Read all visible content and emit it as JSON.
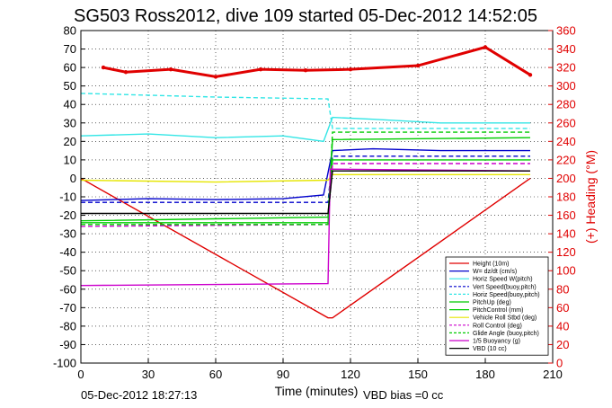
{
  "chart_data": {
    "type": "line",
    "title": "SG503 Ross2012, dive 109 started 05-Dec-2012 14:52:05",
    "xlabel": "Time (minutes)",
    "ylabel_right": "(+) Heading (°M)",
    "xlim": [
      0,
      210
    ],
    "ylim_left": [
      -100,
      80
    ],
    "ylim_right": [
      0,
      360
    ],
    "x_ticks": [
      "0",
      "30",
      "60",
      "90",
      "120",
      "150",
      "180",
      "210"
    ],
    "y_ticks_left": [
      "80",
      "70",
      "60",
      "50",
      "40",
      "30",
      "20",
      "10",
      "0",
      "-10",
      "-20",
      "-30",
      "-40",
      "-50",
      "-60",
      "-70",
      "-80",
      "-90",
      "-100"
    ],
    "y_ticks_right": [
      "360",
      "340",
      "320",
      "300",
      "280",
      "260",
      "240",
      "220",
      "200",
      "180",
      "160",
      "140",
      "120",
      "100",
      "80",
      "60",
      "40",
      "20",
      "0"
    ],
    "footer_left": "05-Dec-2012 18:27:13",
    "footer_right": "VBD bias =0 cc",
    "grid": true,
    "legend_position": "bottom-right",
    "series": [
      {
        "name": "Height (10m)",
        "color": "#e00000",
        "style": "solid",
        "x": [
          0,
          110,
          112,
          200
        ],
        "y": [
          0,
          -75.5,
          -75.5,
          0
        ]
      },
      {
        "name": "W= dz/dt (cm/s)",
        "color": "#0000cc",
        "style": "solid",
        "x": [
          0,
          30,
          60,
          90,
          108,
          112,
          130,
          160,
          200
        ],
        "y": [
          -12,
          -11,
          -11.5,
          -11,
          -9,
          15,
          16,
          15,
          15
        ]
      },
      {
        "name": "Horiz Speed W(pitch)",
        "color": "#33e6e6",
        "style": "solid",
        "x": [
          0,
          30,
          60,
          90,
          108,
          112,
          130,
          160,
          200
        ],
        "y": [
          23,
          24,
          22,
          23,
          20,
          33,
          32,
          30,
          30
        ]
      },
      {
        "name": "Vert Speed(buoy,pitch)",
        "color": "#0000cc",
        "style": "dashed",
        "x": [
          0,
          110,
          112,
          200
        ],
        "y": [
          -13,
          -13,
          12,
          12
        ]
      },
      {
        "name": "Horiz Speed(buoy,pitch)",
        "color": "#33e6e6",
        "style": "dashed",
        "x": [
          0,
          60,
          110,
          112,
          200
        ],
        "y": [
          46,
          44,
          43,
          27,
          27
        ]
      },
      {
        "name": "PitchUp (deg)",
        "color": "#00cc00",
        "style": "solid",
        "x": [
          0,
          110,
          112,
          200
        ],
        "y": [
          -23,
          -21,
          21,
          22
        ]
      },
      {
        "name": "PitchControl (mm)",
        "color": "#00cc00",
        "style": "solid",
        "x": [
          0,
          110,
          112,
          200
        ],
        "y": [
          -24,
          -24,
          10,
          10
        ]
      },
      {
        "name": "Vehicle Roll Stbd (deg)",
        "color": "#e6e600",
        "style": "solid",
        "x": [
          0,
          60,
          110,
          112,
          200
        ],
        "y": [
          -1,
          -2,
          -1,
          2,
          2
        ]
      },
      {
        "name": "Roll Control (deg)",
        "color": "#cc00cc",
        "style": "dashed",
        "x": [
          0,
          110,
          112,
          200
        ],
        "y": [
          -26,
          -25,
          8,
          8
        ]
      },
      {
        "name": "Glide Angle (buoy,pitch)",
        "color": "#00cc00",
        "style": "dashed",
        "x": [
          0,
          110,
          112,
          200
        ],
        "y": [
          -25,
          -25,
          25,
          25
        ]
      },
      {
        "name": "1/5 Buoyancy (g)",
        "color": "#cc00cc",
        "style": "solid",
        "x": [
          0,
          110,
          111,
          200
        ],
        "y": [
          -58,
          -57,
          5,
          4
        ]
      },
      {
        "name": "VBD (10 cc)",
        "color": "#000000",
        "style": "solid",
        "x": [
          0,
          110,
          112,
          200
        ],
        "y": [
          -19,
          -19,
          4,
          4
        ]
      },
      {
        "name": "Heading",
        "color": "#e00000",
        "style": "markers",
        "axis": "right",
        "x": [
          10,
          20,
          40,
          60,
          80,
          100,
          120,
          150,
          180,
          200
        ],
        "y": [
          320,
          315,
          318,
          310,
          318,
          317,
          318,
          322,
          342,
          312
        ]
      }
    ]
  }
}
